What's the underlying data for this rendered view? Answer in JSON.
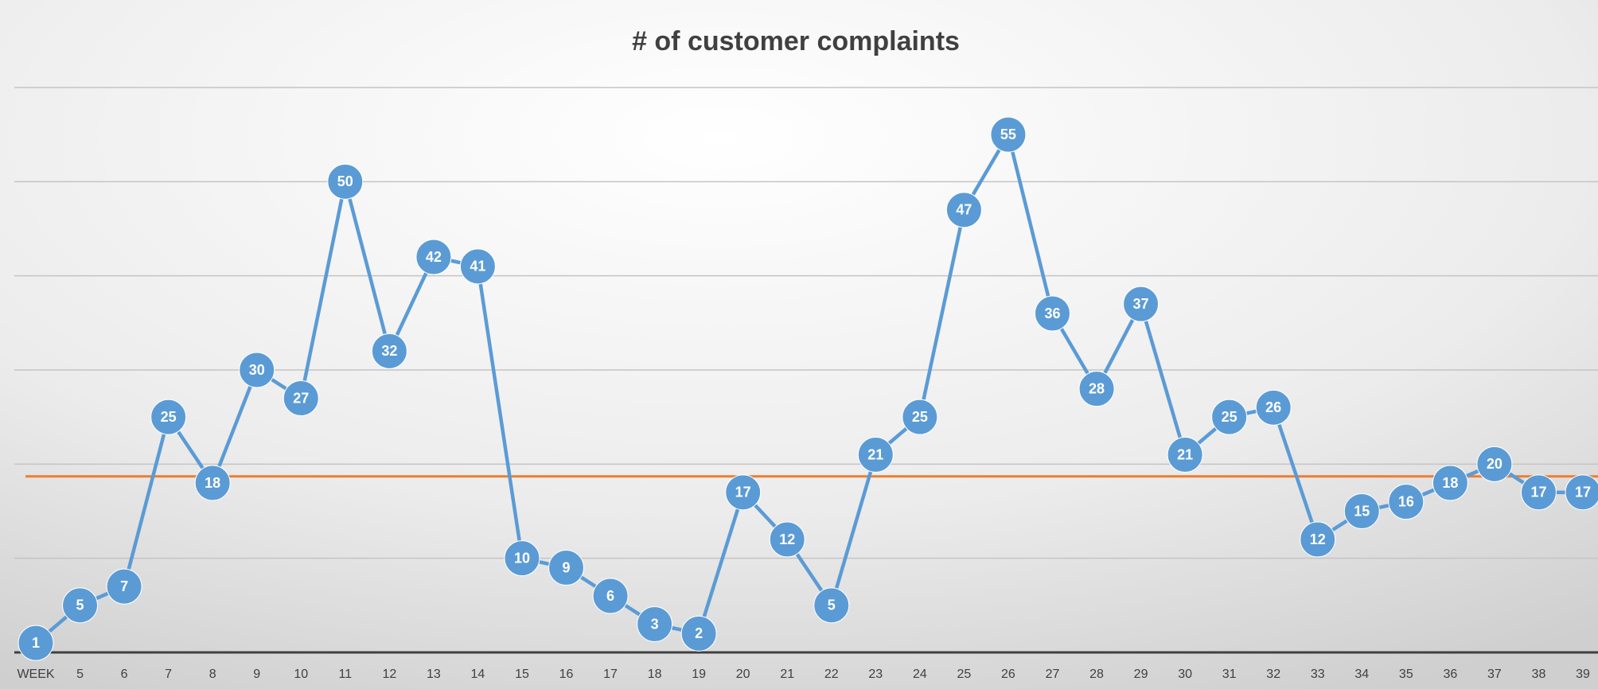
{
  "chart_data": {
    "type": "line",
    "title": "# of customer complaints",
    "categories": [
      "WEEK",
      "5",
      "6",
      "7",
      "8",
      "9",
      "10",
      "11",
      "12",
      "13",
      "14",
      "15",
      "16",
      "17",
      "18",
      "19",
      "20",
      "21",
      "22",
      "23",
      "24",
      "25",
      "26",
      "27",
      "28",
      "29",
      "30",
      "31",
      "32",
      "33",
      "34",
      "35",
      "36",
      "37",
      "38",
      "39"
    ],
    "values": [
      1,
      5,
      7,
      25,
      18,
      30,
      27,
      50,
      32,
      42,
      41,
      10,
      9,
      6,
      3,
      2,
      17,
      12,
      5,
      21,
      25,
      47,
      55,
      36,
      28,
      37,
      21,
      25,
      26,
      12,
      15,
      16,
      18,
      20,
      17,
      17
    ],
    "color": "#5b9bd5",
    "reference_line": {
      "value": 18.7,
      "color": "#ed7d31"
    },
    "ylim": [
      0,
      60
    ],
    "yticks": [
      0,
      10,
      20,
      30,
      40,
      50,
      60
    ],
    "show_ytick_labels": false,
    "grid": true,
    "data_labels": true
  }
}
